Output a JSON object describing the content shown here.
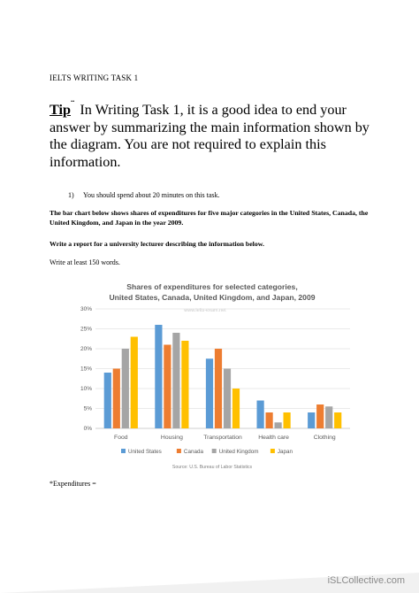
{
  "document": {
    "task_heading": "IELTS WRITING TASK 1",
    "tip_label": "Tip",
    "tip_marks": "¨",
    "tip_text": "In Writing Task 1, it is a good idea to end your answer by summarizing the main information shown by the diagram. You are not required to explain this information.",
    "instruction_number": "1)",
    "instruction_text": "You should spend about 20 minutes on this task.",
    "prompt_text": "The bar chart below shows shares of expenditures for five major categories in the United States, Canada, the United Kingdom, and Japan in the year 2009.",
    "report_text": "Write a report for a university lecturer describing the information below.",
    "word_count_text": "Write at least 150 words.",
    "footnote_text": "*Expenditures ="
  },
  "branding": {
    "site": "iSLCollective.com"
  },
  "chart_data": {
    "type": "bar",
    "title_line1": "Shares of expenditures for selected categories,",
    "title_line2": "United States, Canada, United Kingdom, and Japan, 2009",
    "watermark": "www.ielts-exam.net",
    "source": "Source: U.S. Bureau of Labor Statistics",
    "categories": [
      "Food",
      "Housing",
      "Transportation",
      "Health care",
      "Clothing"
    ],
    "y_ticks": [
      "0%",
      "5%",
      "10%",
      "15%",
      "20%",
      "25%",
      "30%"
    ],
    "ylim": [
      0,
      30
    ],
    "grid": true,
    "legend_position": "bottom",
    "series": [
      {
        "name": "United States",
        "color": "#5b9bd5",
        "values": [
          14,
          26,
          17.5,
          7,
          4
        ]
      },
      {
        "name": "Canada",
        "color": "#ed7d31",
        "values": [
          15,
          21,
          20,
          4,
          6
        ]
      },
      {
        "name": "United Kingdom",
        "color": "#a5a5a5",
        "values": [
          20,
          24,
          15,
          1.5,
          5.5
        ]
      },
      {
        "name": "Japan",
        "color": "#ffc000",
        "values": [
          23,
          22,
          10,
          4,
          4
        ]
      }
    ]
  }
}
